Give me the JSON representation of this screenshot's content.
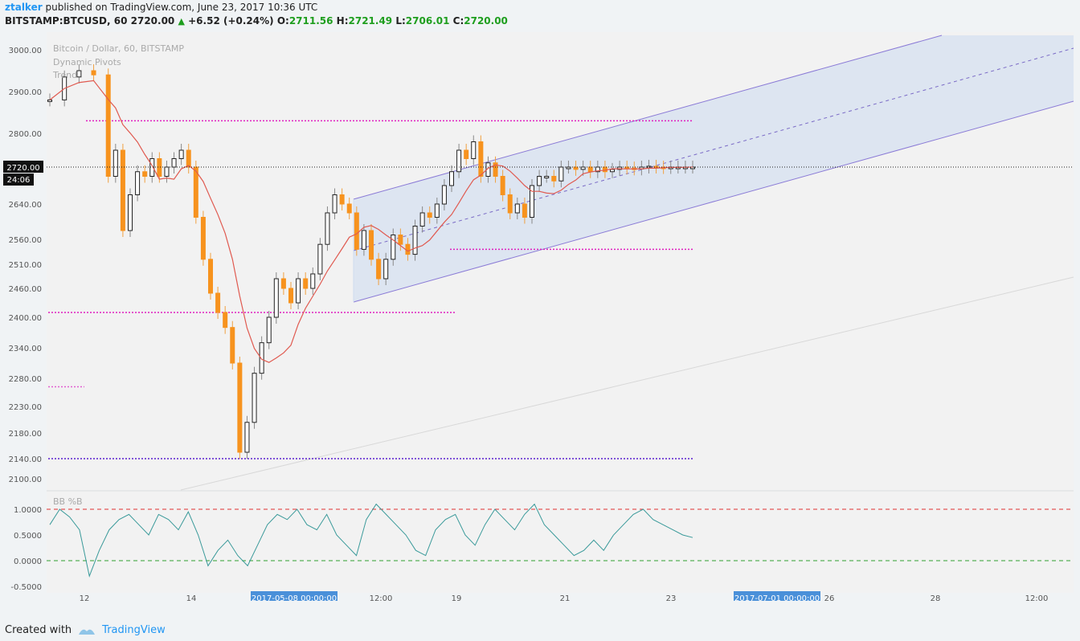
{
  "header": {
    "user": "ztalker",
    "published": "published on TradingView.com, June 23, 2017 10:36 UTC",
    "symbol": "BITSTAMP:BTCUSD, 60",
    "last": "2720.00",
    "change": "+6.52 (+0.24%)",
    "o_label": "O:",
    "o": "2711.56",
    "h_label": "H:",
    "h": "2721.49",
    "l_label": "L:",
    "l": "2706.01",
    "c_label": "C:",
    "c": "2720.00"
  },
  "footer": {
    "created_with": "Created with",
    "brand": "TradingView"
  },
  "chart_data": {
    "type": "line",
    "title": "Bitcoin / Dollar, 60, BITSTAMP",
    "indicators": [
      "Dynamic Pivots",
      "Trend"
    ],
    "price_ticks": [
      "3000.00",
      "2900.00",
      "2800.00",
      "2720.00",
      "2640.00",
      "2560.00",
      "2510.00",
      "2460.00",
      "2400.00",
      "2340.00",
      "2280.00",
      "2230.00",
      "2180.00",
      "2140.00",
      "2100.00"
    ],
    "price_label": "2720.00",
    "countdown": "24:06",
    "x_ticks": [
      "12",
      "14",
      "12:00",
      "19",
      "21",
      "23",
      "26",
      "28",
      "12:00"
    ],
    "x_highlights": [
      "2017-05-08 00:00:00",
      "2017-07-01 00:00:00"
    ],
    "price_series": {
      "name": "BTCUSD close",
      "t": [
        0,
        2,
        4,
        6,
        8,
        9,
        10,
        11,
        12,
        13,
        14,
        15,
        16,
        17,
        18,
        19,
        20,
        21,
        22,
        23,
        24,
        25,
        26,
        27,
        28,
        29,
        30,
        31,
        32,
        33,
        34,
        35,
        36,
        37,
        38,
        39,
        40,
        41,
        42,
        43,
        44,
        45,
        46,
        47,
        48,
        49,
        50,
        51,
        52,
        53,
        54,
        55,
        56,
        57,
        58,
        59,
        60,
        61,
        62,
        63,
        64,
        65,
        66,
        67,
        68,
        69,
        70,
        71,
        72,
        73,
        74,
        75,
        76,
        77,
        78,
        79,
        80,
        81,
        82,
        83,
        84,
        85,
        86,
        87,
        88
      ],
      "close": [
        2880,
        2935,
        2950,
        2940,
        2700,
        2760,
        2580,
        2660,
        2710,
        2700,
        2740,
        2700,
        2720,
        2740,
        2760,
        2720,
        2610,
        2520,
        2450,
        2410,
        2380,
        2310,
        2150,
        2200,
        2290,
        2350,
        2400,
        2480,
        2460,
        2430,
        2480,
        2460,
        2490,
        2550,
        2620,
        2660,
        2640,
        2620,
        2540,
        2580,
        2520,
        2480,
        2520,
        2570,
        2550,
        2530,
        2590,
        2620,
        2610,
        2640,
        2680,
        2710,
        2760,
        2740,
        2780,
        2700,
        2730,
        2700,
        2660,
        2620,
        2640,
        2610,
        2680,
        2700,
        2700,
        2690,
        2720,
        2720,
        2715,
        2720,
        2710,
        2720,
        2710,
        2715,
        2720,
        2718,
        2716,
        2720,
        2722,
        2720,
        2719,
        2720,
        2720,
        2720,
        2720
      ]
    },
    "rsi_series": {
      "name": "BB %B",
      "ticks": [
        "1.0000",
        "0.5000",
        "0.0000",
        "-0.5000"
      ],
      "values": [
        0.7,
        1.0,
        0.85,
        0.6,
        -0.3,
        0.2,
        0.6,
        0.8,
        0.9,
        0.7,
        0.5,
        0.9,
        0.8,
        0.6,
        0.95,
        0.5,
        -0.1,
        0.2,
        0.4,
        0.1,
        -0.1,
        0.3,
        0.7,
        0.9,
        0.8,
        1.0,
        0.7,
        0.6,
        0.9,
        0.5,
        0.3,
        0.1,
        0.8,
        1.1,
        0.9,
        0.7,
        0.5,
        0.2,
        0.1,
        0.6,
        0.8,
        0.9,
        0.5,
        0.3,
        0.7,
        1.0,
        0.8,
        0.6,
        0.9,
        1.1,
        0.7,
        0.5,
        0.3,
        0.1,
        0.2,
        0.4,
        0.2,
        0.5,
        0.7,
        0.9,
        1.0,
        0.8,
        0.7,
        0.6,
        0.5,
        0.45
      ]
    },
    "levels": [
      2830,
      2540,
      2410,
      2140,
      2265
    ]
  }
}
